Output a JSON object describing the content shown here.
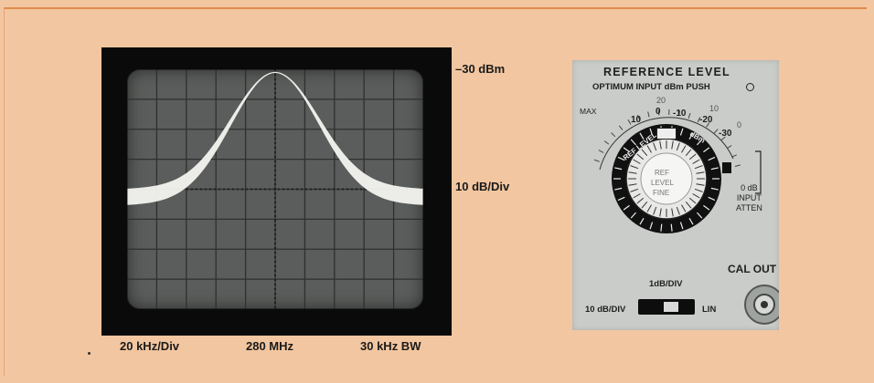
{
  "display": {
    "ref_level": "–30 dBm",
    "vertical_scale": "10 dB/Div",
    "horizontal_scale": "20 kHz/Div",
    "center_frequency": "280 MHz",
    "bandwidth": "30 kHz BW"
  },
  "panel": {
    "title": "REFERENCE LEVEL",
    "subtitle": "OPTIMUM INPUT dBm  PUSH",
    "max_label": "MAX",
    "dial_label": "REF LEVEL",
    "dial_unit": "dBm",
    "knob_label_1": "REF",
    "knob_label_2": "LEVEL",
    "knob_label_3": "FINE",
    "bold_scale": [
      "10",
      "0",
      "-10",
      "-20",
      "-30"
    ],
    "light_scale": [
      "20",
      "10",
      "0"
    ],
    "atten_line_1": "0 dB",
    "atten_line_2": "INPUT",
    "atten_line_3": "ATTEN",
    "cal_out": "CAL OUT",
    "mode_1db": "1dB/DIV",
    "mode_10db": "10 dB/DIV",
    "mode_lin": "LIN"
  },
  "colors": {
    "background": "#f2c6a0",
    "border_accent": "#e08a4e",
    "screen": "#5a5d5b",
    "trace": "#f4f4f0",
    "panel": "#c9ccc8"
  }
}
